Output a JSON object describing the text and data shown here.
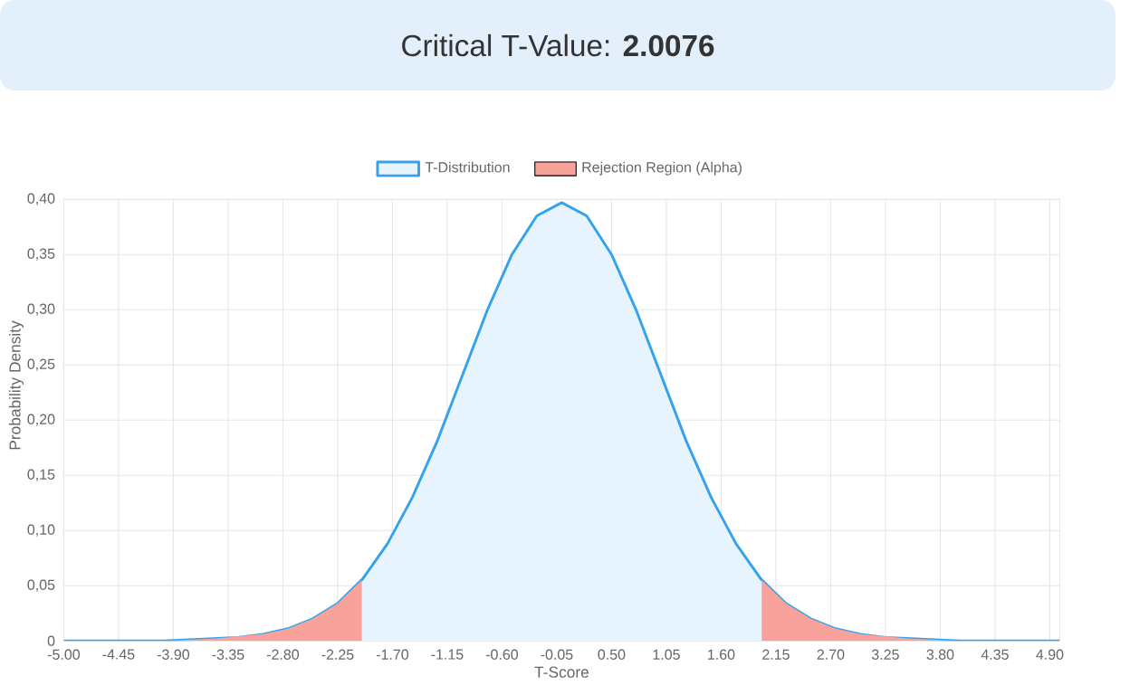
{
  "chart_data": {
    "type": "line",
    "title": "Critical T-Value: **2.0076**",
    "xlabel": "T-Score",
    "ylabel": "Probability Density",
    "series": [
      {
        "name": "T-Distribution",
        "color": "#36a2eb",
        "x": [
          -5,
          -4.75,
          -4.5,
          -4.25,
          -4,
          -3.75,
          -3.5,
          -3.25,
          -3,
          -2.75,
          -2.5,
          -2.25,
          -2,
          -1.75,
          -1.5,
          -1.25,
          -1,
          -0.75,
          -0.5,
          -0.25,
          0,
          0.25,
          0.5,
          0.75,
          1,
          1.25,
          1.5,
          1.75,
          2,
          2.25,
          2.5,
          2.75,
          3,
          3.25,
          3.5,
          3.75,
          4,
          4.25,
          4.5,
          4.75,
          5
        ],
        "values": [
          0,
          0,
          0,
          0,
          0,
          0.001,
          0.002,
          0.003,
          0.006,
          0.011,
          0.02,
          0.034,
          0.056,
          0.088,
          0.13,
          0.181,
          0.24,
          0.299,
          0.35,
          0.385,
          0.397,
          0.385,
          0.35,
          0.299,
          0.24,
          0.181,
          0.13,
          0.088,
          0.056,
          0.034,
          0.02,
          0.011,
          0.006,
          0.003,
          0.002,
          0.001,
          0,
          0,
          0,
          0,
          0
        ]
      },
      {
        "name": "Rejection Region (Alpha)",
        "type": "area",
        "color": "#f7a39b",
        "x": [
          -5,
          -4.5,
          -4,
          -3.5,
          -3,
          -2.75,
          -2.5,
          -2.25,
          -2.0076,
          0,
          2.0076,
          2.25,
          2.5,
          2.75,
          3,
          3.5,
          4,
          4.5,
          5
        ],
        "values": [
          0,
          0,
          0,
          0.002,
          0.006,
          0.011,
          0.02,
          0.034,
          0.055,
          null,
          0.055,
          0.034,
          0.02,
          0.011,
          0.006,
          0.002,
          0,
          0,
          0
        ]
      }
    ],
    "xlim": [
      -5,
      5
    ],
    "xticks": [
      {
        "value": -5,
        "label": "-5.00"
      },
      {
        "value": -4.45,
        "label": "-4.45"
      },
      {
        "value": -3.9,
        "label": "-3.90"
      },
      {
        "value": -3.35,
        "label": "-3.35"
      },
      {
        "value": -2.8,
        "label": "-2.80"
      },
      {
        "value": -2.25,
        "label": "-2.25"
      },
      {
        "value": -1.7,
        "label": "-1.70"
      },
      {
        "value": -1.15,
        "label": "-1.15"
      },
      {
        "value": -0.6,
        "label": "-0.60"
      },
      {
        "value": -0.05,
        "label": "-0.05"
      },
      {
        "value": 0.5,
        "label": "0.50"
      },
      {
        "value": 1.05,
        "label": "1.05"
      },
      {
        "value": 1.6,
        "label": "1.60"
      },
      {
        "value": 2.15,
        "label": "2.15"
      },
      {
        "value": 2.7,
        "label": "2.70"
      },
      {
        "value": 3.25,
        "label": "3.25"
      },
      {
        "value": 3.8,
        "label": "3.80"
      },
      {
        "value": 4.35,
        "label": "4.35"
      },
      {
        "value": 4.9,
        "label": "4.90"
      }
    ],
    "ylim": [
      0,
      0.4
    ],
    "yticks": [
      0,
      {
        "value": 0.05,
        "label": "0,05"
      },
      {
        "value": 0.1,
        "label": "0,10"
      },
      {
        "value": 0.15,
        "label": "0,15"
      },
      {
        "value": 0.2,
        "label": "0,20"
      },
      {
        "value": 0.25,
        "label": "0,25"
      },
      {
        "value": 0.3,
        "label": "0,30"
      },
      {
        "value": 0.35,
        "label": "0,35"
      },
      {
        "value": 0.4,
        "label": "0,40"
      }
    ],
    "grid": true,
    "legend": "top",
    "marker": "none",
    "line_style": "solid"
  }
}
